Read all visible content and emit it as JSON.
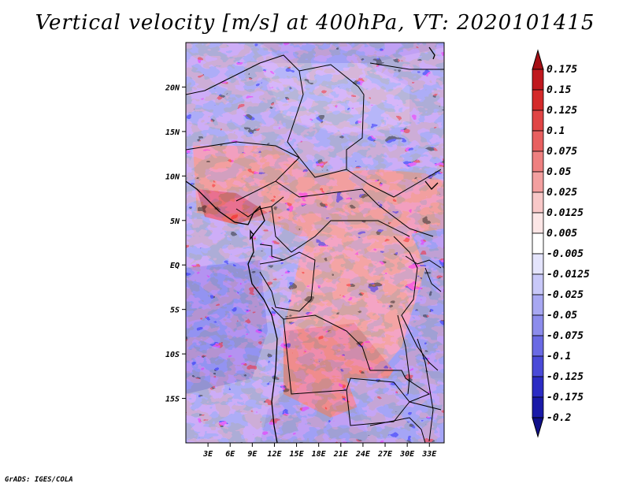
{
  "title": "Vertical velocity [m/s] at 400hPa, VT: 2020101415",
  "footer": "GrADS: IGES/COLA",
  "map": {
    "lon_range": [
      0,
      35
    ],
    "lat_range": [
      -20,
      25
    ],
    "lat_ticks": [
      {
        "value": 20,
        "label": "20N"
      },
      {
        "value": 15,
        "label": "15N"
      },
      {
        "value": 10,
        "label": "10N"
      },
      {
        "value": 5,
        "label": "5N"
      },
      {
        "value": 0,
        "label": "EQ"
      },
      {
        "value": -5,
        "label": "5S"
      },
      {
        "value": -10,
        "label": "10S"
      },
      {
        "value": -15,
        "label": "15S"
      }
    ],
    "lon_ticks": [
      {
        "value": 3,
        "label": "3E"
      },
      {
        "value": 6,
        "label": "6E"
      },
      {
        "value": 9,
        "label": "9E"
      },
      {
        "value": 12,
        "label": "12E"
      },
      {
        "value": 15,
        "label": "15E"
      },
      {
        "value": 18,
        "label": "18E"
      },
      {
        "value": 21,
        "label": "21E"
      },
      {
        "value": 24,
        "label": "24E"
      },
      {
        "value": 27,
        "label": "27E"
      },
      {
        "value": 30,
        "label": "30E"
      },
      {
        "value": 33,
        "label": "33E"
      }
    ]
  },
  "colorbar": {
    "labels": [
      "0.175",
      "0.15",
      "0.125",
      "0.1",
      "0.075",
      "0.05",
      "0.025",
      "0.0125",
      "0.005",
      "-0.005",
      "-0.0125",
      "-0.025",
      "-0.05",
      "-0.075",
      "-0.1",
      "-0.125",
      "-0.175",
      "-0.2"
    ],
    "colors": [
      "#a50f15",
      "#c0181e",
      "#d42a2a",
      "#e04545",
      "#e86060",
      "#ee8080",
      "#f3a0a0",
      "#f8c8c8",
      "#fce6e6",
      "#ffffff",
      "#e4e4fc",
      "#c8c8f8",
      "#a8a8f2",
      "#8c8cec",
      "#6a6ae4",
      "#4a4ad8",
      "#2c2cc4",
      "#1a1aa8",
      "#10108a"
    ]
  }
}
